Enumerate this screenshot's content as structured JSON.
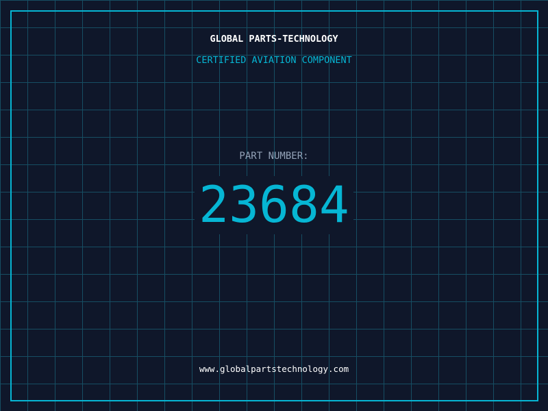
{
  "header": {
    "title": "GLOBAL PARTS-TECHNOLOGY",
    "subtitle": "CERTIFIED AVIATION COMPONENT"
  },
  "part": {
    "label": "PART NUMBER:",
    "number": "23684"
  },
  "footer": {
    "url": "www.globalpartstechnology.com"
  },
  "colors": {
    "background": "#0f172a",
    "accent": "#06b6d4",
    "grid": "#164e63",
    "label": "#94a3b8"
  }
}
